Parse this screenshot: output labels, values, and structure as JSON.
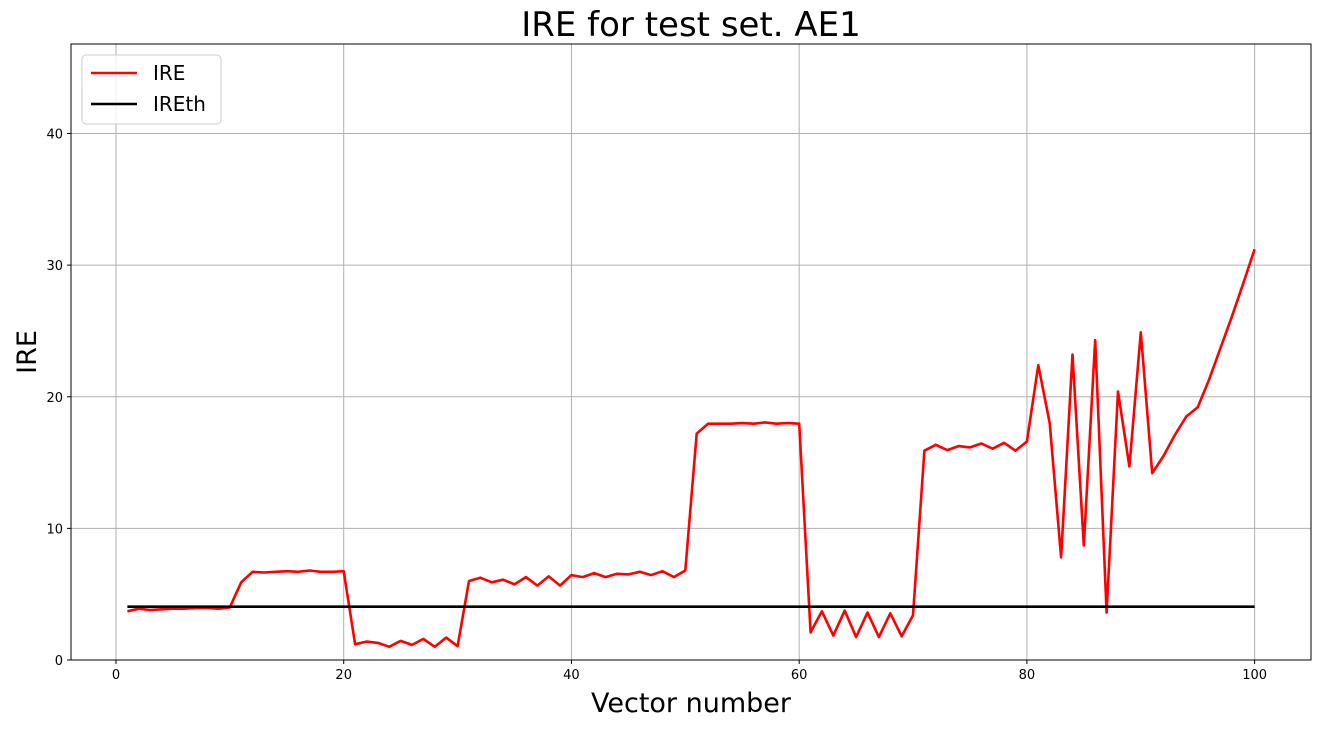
{
  "chart_data": {
    "type": "line",
    "title": "IRE for test set. AE1",
    "xlabel": "Vector number",
    "ylabel": "IRE",
    "xlim": [
      -3.95,
      104.95
    ],
    "ylim": [
      0,
      46.8
    ],
    "xticks": [
      0,
      20,
      40,
      60,
      80,
      100
    ],
    "yticks": [
      0,
      10,
      20,
      30,
      40
    ],
    "grid": true,
    "legend_position": "top-left",
    "series": [
      {
        "name": "IRE",
        "color": "#ff0000",
        "x": [
          1,
          2,
          3,
          4,
          5,
          6,
          7,
          8,
          9,
          10,
          11,
          12,
          13,
          14,
          15,
          16,
          17,
          18,
          19,
          20,
          21,
          22,
          23,
          24,
          25,
          26,
          27,
          28,
          29,
          30,
          31,
          32,
          33,
          34,
          35,
          36,
          37,
          38,
          39,
          40,
          41,
          42,
          43,
          44,
          45,
          46,
          47,
          48,
          49,
          50,
          51,
          52,
          53,
          54,
          55,
          56,
          57,
          58,
          59,
          60,
          61,
          62,
          63,
          64,
          65,
          66,
          67,
          68,
          69,
          70,
          71,
          72,
          73,
          74,
          75,
          76,
          77,
          78,
          79,
          80,
          81,
          82,
          83,
          84,
          85,
          86,
          87,
          88,
          89,
          90,
          91,
          92,
          93,
          94,
          95,
          96,
          97,
          98,
          99,
          100
        ],
        "y": [
          3.7,
          3.9,
          3.8,
          3.85,
          3.9,
          3.9,
          3.95,
          3.95,
          3.9,
          4.0,
          5.9,
          6.7,
          6.65,
          6.7,
          6.75,
          6.7,
          6.8,
          6.7,
          6.7,
          6.75,
          1.2,
          1.4,
          1.3,
          1.0,
          1.45,
          1.15,
          1.6,
          1.0,
          1.7,
          1.05,
          6.0,
          6.25,
          5.9,
          6.1,
          5.75,
          6.3,
          5.65,
          6.35,
          5.65,
          6.45,
          6.3,
          6.6,
          6.3,
          6.55,
          6.5,
          6.7,
          6.45,
          6.75,
          6.3,
          6.8,
          17.2,
          17.95,
          17.95,
          17.95,
          18.0,
          17.95,
          18.05,
          17.95,
          18.0,
          17.95,
          2.1,
          3.7,
          1.85,
          3.75,
          1.75,
          3.6,
          1.75,
          3.55,
          1.8,
          3.4,
          15.9,
          16.35,
          15.95,
          16.25,
          16.15,
          16.45,
          16.05,
          16.5,
          15.9,
          16.6,
          22.4,
          18.0,
          7.8,
          23.2,
          8.7,
          24.3,
          3.6,
          20.4,
          14.7,
          24.9,
          14.2,
          15.5,
          17.1,
          18.5,
          19.2,
          21.3,
          23.7,
          26.1,
          28.6,
          31.2
        ]
      },
      {
        "name": "IREth",
        "color": "#000000",
        "x": [
          1,
          100
        ],
        "y": [
          4.05,
          4.05
        ]
      }
    ]
  }
}
